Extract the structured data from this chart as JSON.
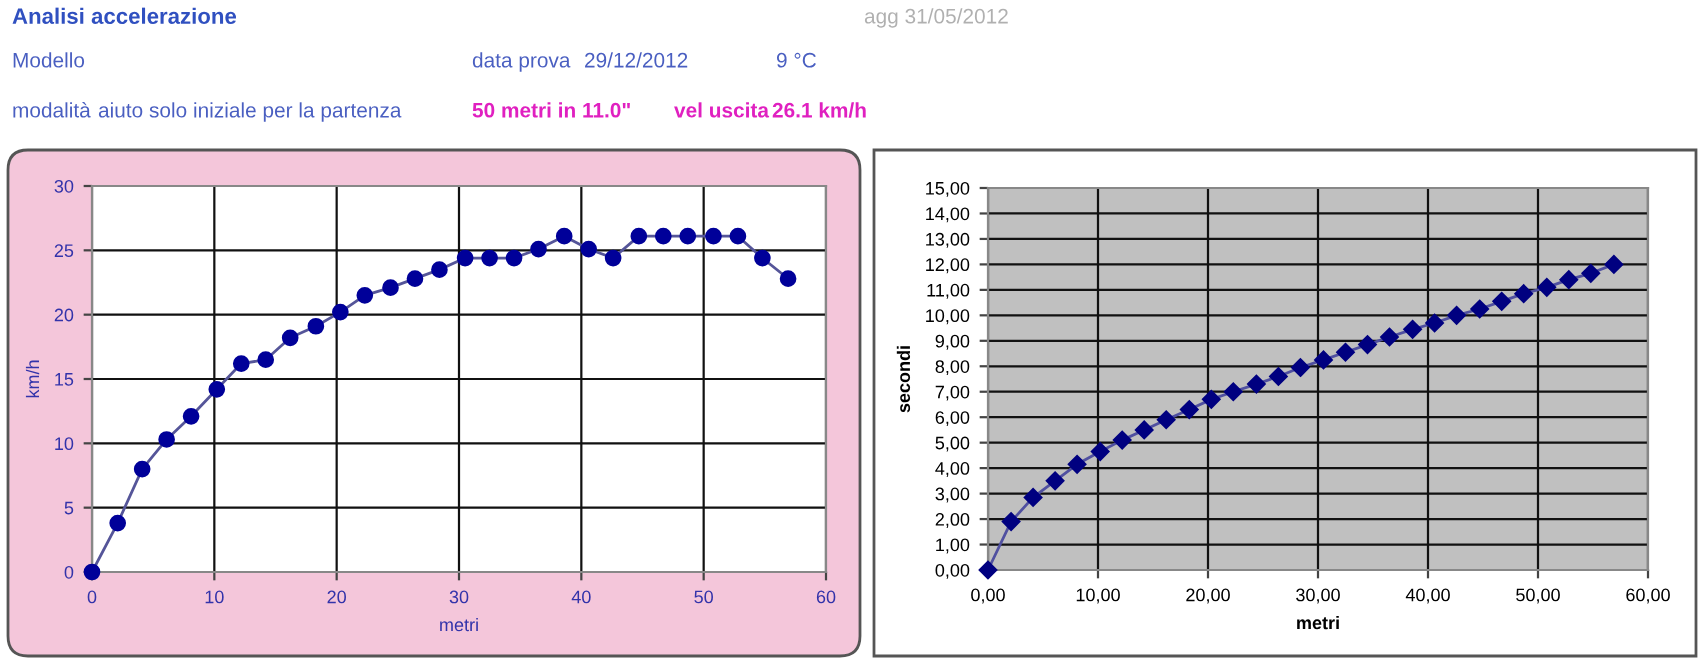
{
  "chart_data": [
    {
      "type": "other",
      "title": "Analisi accelerazione",
      "annotations": [
        "agg 31/05/2012",
        "Modello",
        "data prova",
        "29/12/2012",
        "9 °C",
        "modalità",
        "aiuto solo iniziale per la partenza",
        "50 metri in 11.0\"",
        "vel uscita",
        "26.1 km/h"
      ]
    },
    {
      "type": "line",
      "xlabel": "metri",
      "ylabel": "km/h",
      "x": [
        0,
        2.1,
        4.1,
        6.1,
        8.1,
        10.2,
        12.2,
        14.2,
        16.2,
        18.3,
        20.3,
        22.3,
        24.4,
        26.4,
        28.4,
        30.5,
        32.5,
        34.5,
        36.5,
        38.6,
        40.6,
        42.6,
        44.7,
        46.7,
        48.7,
        50.8,
        52.8,
        54.8,
        56.9
      ],
      "series": [
        {
          "color": "#000099",
          "values": [
            0,
            3.8,
            8,
            10.3,
            12.1,
            14.2,
            16.2,
            16.5,
            18.2,
            19.1,
            20.2,
            21.5,
            22.1,
            22.8,
            23.5,
            24.4,
            24.4,
            24.4,
            25.1,
            26.1,
            25.1,
            24.4,
            26.1,
            26.1,
            26.1,
            26.1,
            26.1,
            24.4,
            22.8
          ]
        }
      ],
      "xlim": [
        0,
        60
      ],
      "xticks": [
        0,
        10,
        20,
        30,
        40,
        50,
        60
      ],
      "ylim": [
        0,
        30
      ],
      "yticks": [
        0,
        5,
        10,
        15,
        20,
        25,
        30
      ],
      "grid": true,
      "marker": "circle",
      "line_style": "solid"
    },
    {
      "type": "line",
      "xlabel": "metri",
      "ylabel": "secondi",
      "x": [
        0,
        2.1,
        4.1,
        6.1,
        8.1,
        10.2,
        12.2,
        14.2,
        16.2,
        18.3,
        20.3,
        22.3,
        24.4,
        26.4,
        28.4,
        30.5,
        32.5,
        34.5,
        36.5,
        38.6,
        40.6,
        42.6,
        44.7,
        46.7,
        48.7,
        50.8,
        52.8,
        54.8,
        56.9
      ],
      "series": [
        {
          "color": "#000080",
          "values": [
            0,
            1.9,
            2.85,
            3.5,
            4.15,
            4.65,
            5.1,
            5.5,
            5.9,
            6.3,
            6.7,
            7.0,
            7.3,
            7.6,
            7.95,
            8.25,
            8.55,
            8.85,
            9.15,
            9.45,
            9.7,
            10.0,
            10.25,
            10.55,
            10.85,
            11.1,
            11.4,
            11.65,
            12.0
          ]
        }
      ],
      "xlim": [
        0,
        60
      ],
      "xticks": [
        {
          "value": 0,
          "label": "0,00"
        },
        {
          "value": 10,
          "label": "10,00"
        },
        {
          "value": 20,
          "label": "20,00"
        },
        {
          "value": 30,
          "label": "30,00"
        },
        {
          "value": 40,
          "label": "40,00"
        },
        {
          "value": 50,
          "label": "50,00"
        },
        {
          "value": 60,
          "label": "60,00"
        }
      ],
      "ylim": [
        0,
        15
      ],
      "yticks": [
        {
          "value": 0,
          "label": "0,00"
        },
        {
          "value": 1,
          "label": "1,00"
        },
        {
          "value": 2,
          "label": "2,00"
        },
        {
          "value": 3,
          "label": "3,00"
        },
        {
          "value": 4,
          "label": "4,00"
        },
        {
          "value": 5,
          "label": "5,00"
        },
        {
          "value": 6,
          "label": "6,00"
        },
        {
          "value": 7,
          "label": "7,00"
        },
        {
          "value": 8,
          "label": "8,00"
        },
        {
          "value": 9,
          "label": "9,00"
        },
        {
          "value": 10,
          "label": "10,00"
        },
        {
          "value": 11,
          "label": "11,00"
        },
        {
          "value": 12,
          "label": "12,00"
        },
        {
          "value": 13,
          "label": "13,00"
        },
        {
          "value": 14,
          "label": "14,00"
        },
        {
          "value": 15,
          "label": "15,00"
        }
      ],
      "grid": true,
      "marker": "diamond",
      "line_style": "solid"
    }
  ]
}
